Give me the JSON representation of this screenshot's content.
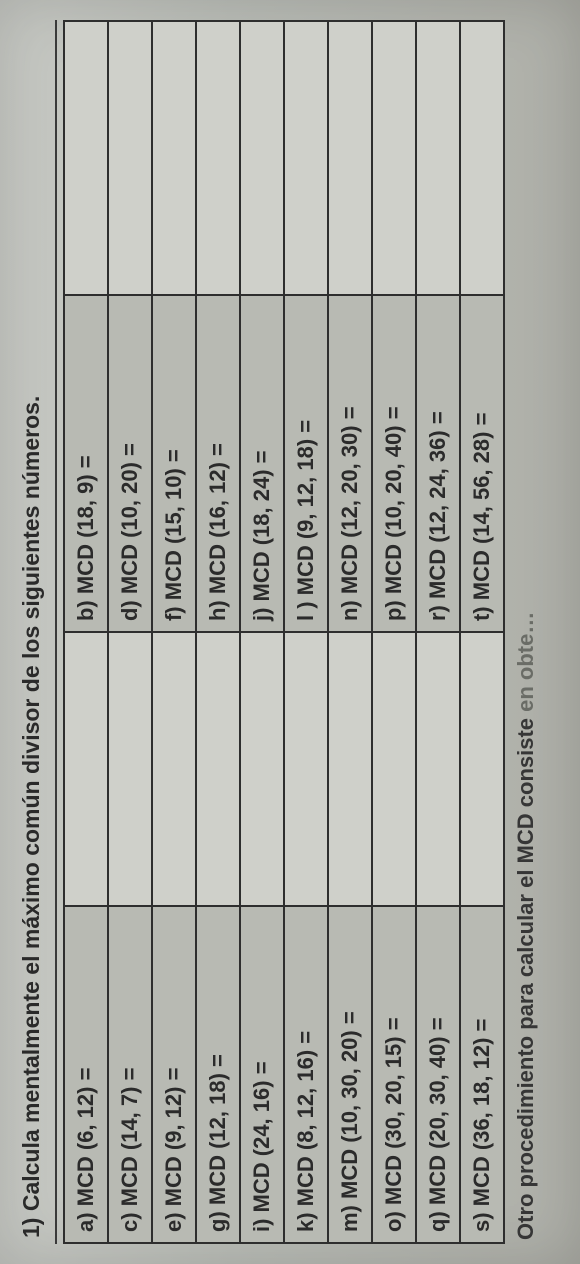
{
  "title": "1) Calcula mentalmente el máximo común divisor de los siguientes números.",
  "rows": [
    {
      "left": "a) MCD (6, 12) =",
      "right": "b) MCD (18, 9) ="
    },
    {
      "left": "c) MCD (14, 7) =",
      "right": "d) MCD (10, 20) ="
    },
    {
      "left": "e) MCD (9, 12) =",
      "right": "f) MCD (15, 10) ="
    },
    {
      "left": "g) MCD (12, 18) =",
      "right": "h) MCD (16, 12) ="
    },
    {
      "left": "i) MCD (24, 16) =",
      "right": "j) MCD (18, 24) ="
    },
    {
      "left": "k) MCD (8, 12, 16) =",
      "right": "l ) MCD (9, 12, 18) ="
    },
    {
      "left": "m) MCD (10, 30, 20) =",
      "right": "n) MCD (12, 20, 30) ="
    },
    {
      "left": "o) MCD (30, 20, 15) =",
      "right": "p) MCD (10, 20, 40) ="
    },
    {
      "left": "q) MCD (20, 30, 40) =",
      "right": "r) MCD (12, 24, 36) ="
    },
    {
      "left": "s) MCD (36, 18, 12) =",
      "right": "t) MCD (14, 56, 28) ="
    }
  ],
  "footer_prefix": "Otro procedimiento para calcular el MCD consiste ",
  "footer_fade": "en obte…"
}
